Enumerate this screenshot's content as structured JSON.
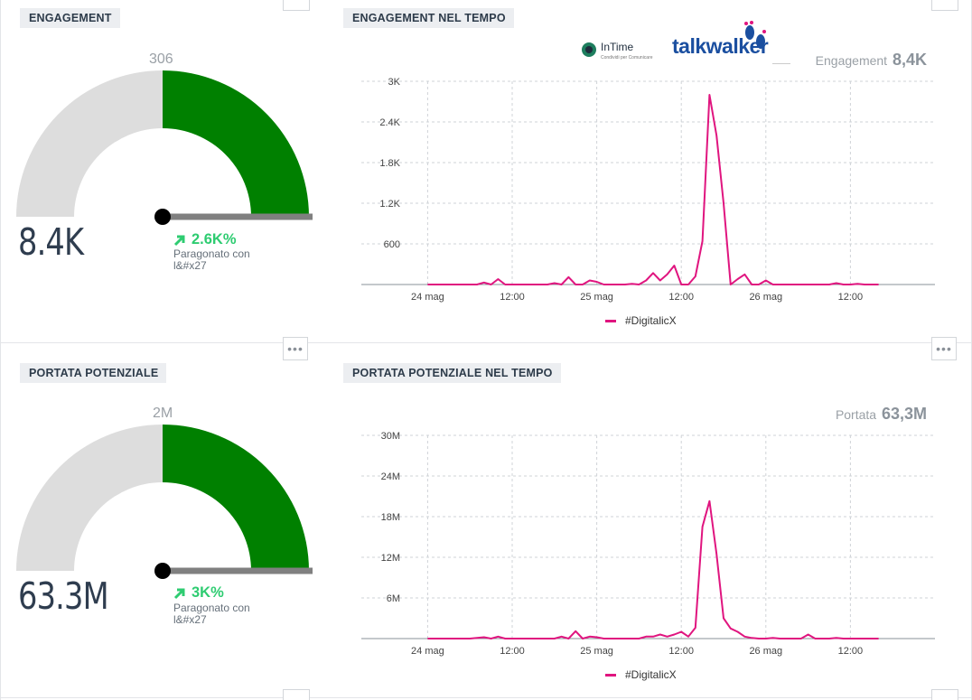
{
  "logos": {
    "intime_name": "InTime",
    "intime_tagline": "Condividi per Comunicare",
    "talkwalker": "talkwalker"
  },
  "engagement_gauge": {
    "title": "ENGAGEMENT",
    "max_label": "306",
    "value": "8.4K",
    "delta": "2.6K%",
    "comparison": "Paragonato con l&#x27",
    "gauge_fraction": 0.5
  },
  "engagement_chart": {
    "title": "ENGAGEMENT NEL TEMPO",
    "stat_label": "Engagement",
    "stat_value": "8,4K",
    "legend": "#DigitalicX"
  },
  "reach_gauge": {
    "title": "PORTATA POTENZIALE",
    "max_label": "2M",
    "value": "63.3M",
    "delta": "3K%",
    "comparison": "Paragonato con l&#x27",
    "gauge_fraction": 0.5
  },
  "reach_chart": {
    "title": "PORTATA POTENZIALE NEL TEMPO",
    "stat_label": "Portata",
    "stat_value": "63,3M",
    "legend": "#DigitalicX"
  },
  "colors": {
    "gauge_fill": "#008000",
    "gauge_track": "#dddddd",
    "series": "#e0157f",
    "delta_up": "#2ecc71"
  },
  "icons": {
    "more": "more-dots-icon",
    "delta": "arrow-up-right-icon"
  },
  "chart_data": [
    {
      "type": "line",
      "title": "",
      "xlabel": "",
      "ylabel": "",
      "x_ticks": [
        "24 mag",
        "12:00",
        "25 mag",
        "12:00",
        "26 mag",
        "12:00"
      ],
      "x_tick_hours": [
        0,
        12,
        24,
        36,
        48,
        60
      ],
      "y_ticks": [
        600,
        1200,
        1800,
        2400,
        3000
      ],
      "y_tick_labels": [
        "600",
        "1.2K",
        "1.8K",
        "2.4K",
        "3K"
      ],
      "ylim": [
        0,
        3000
      ],
      "xlim_hours": [
        -3,
        72
      ],
      "grid": true,
      "legend": "bottom",
      "series": [
        {
          "name": "#DigitalicX",
          "color": "#e0157f",
          "x_hours": [
            0,
            1,
            2,
            3,
            4,
            5,
            6,
            7,
            8,
            9,
            10,
            11,
            12,
            13,
            14,
            15,
            16,
            17,
            18,
            19,
            20,
            21,
            22,
            23,
            24,
            25,
            26,
            27,
            28,
            29,
            30,
            31,
            32,
            33,
            34,
            35,
            36,
            37,
            38,
            39,
            40,
            41,
            42,
            43,
            44,
            45,
            46,
            47,
            48,
            49,
            50,
            51,
            52,
            53,
            54,
            55,
            56,
            57,
            58,
            59,
            60,
            61,
            62,
            63,
            64
          ],
          "values": [
            0,
            0,
            0,
            0,
            0,
            0,
            0,
            0,
            30,
            0,
            80,
            0,
            0,
            0,
            0,
            0,
            0,
            0,
            20,
            0,
            110,
            0,
            0,
            60,
            40,
            0,
            0,
            0,
            0,
            10,
            0,
            60,
            170,
            60,
            150,
            280,
            0,
            0,
            120,
            640,
            2800,
            2200,
            1200,
            0,
            80,
            150,
            0,
            0,
            60,
            0,
            0,
            0,
            0,
            0,
            0,
            0,
            0,
            0,
            20,
            0,
            0,
            10,
            0,
            0,
            0
          ]
        }
      ]
    },
    {
      "type": "line",
      "title": "",
      "xlabel": "",
      "ylabel": "",
      "x_ticks": [
        "24 mag",
        "12:00",
        "25 mag",
        "12:00",
        "26 mag",
        "12:00"
      ],
      "x_tick_hours": [
        0,
        12,
        24,
        36,
        48,
        60
      ],
      "y_ticks": [
        6000000,
        12000000,
        18000000,
        24000000,
        30000000
      ],
      "y_tick_labels": [
        "6M",
        "12M",
        "18M",
        "24M",
        "30M"
      ],
      "ylim": [
        0,
        30000000
      ],
      "xlim_hours": [
        -3,
        72
      ],
      "grid": true,
      "legend": "bottom",
      "series": [
        {
          "name": "#DigitalicX",
          "color": "#e0157f",
          "x_hours": [
            0,
            1,
            2,
            3,
            4,
            5,
            6,
            7,
            8,
            9,
            10,
            11,
            12,
            13,
            14,
            15,
            16,
            17,
            18,
            19,
            20,
            21,
            22,
            23,
            24,
            25,
            26,
            27,
            28,
            29,
            30,
            31,
            32,
            33,
            34,
            35,
            36,
            37,
            38,
            39,
            40,
            41,
            42,
            43,
            44,
            45,
            46,
            47,
            48,
            49,
            50,
            51,
            52,
            53,
            54,
            55,
            56,
            57,
            58,
            59,
            60,
            61,
            62,
            63,
            64
          ],
          "values": [
            0,
            0,
            0,
            0,
            0,
            0,
            0,
            100000,
            200000,
            0,
            300000,
            0,
            0,
            0,
            0,
            0,
            0,
            0,
            0,
            300000,
            0,
            1100000,
            0,
            300000,
            200000,
            0,
            0,
            0,
            0,
            0,
            0,
            300000,
            300000,
            600000,
            300000,
            600000,
            1000000,
            300000,
            1600000,
            16500000,
            20300000,
            12500000,
            3000000,
            1500000,
            1000000,
            300000,
            100000,
            0,
            0,
            100000,
            0,
            0,
            0,
            0,
            600000,
            0,
            0,
            0,
            100000,
            0,
            0,
            0,
            0,
            0,
            0
          ]
        }
      ]
    }
  ]
}
